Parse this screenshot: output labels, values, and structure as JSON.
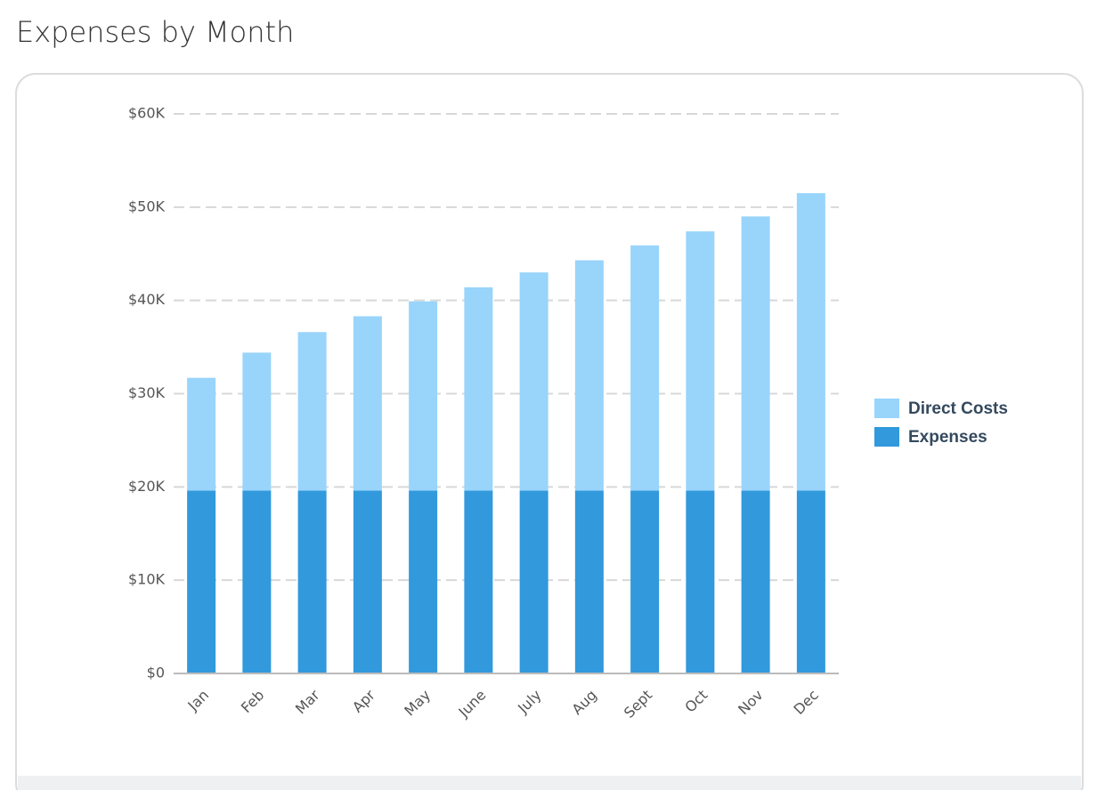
{
  "chart_data": {
    "type": "stacked_bar",
    "title": "Expenses by Month",
    "categories": [
      "Jan",
      "Feb",
      "Mar",
      "Apr",
      "May",
      "June",
      "July",
      "Aug",
      "Sept",
      "Oct",
      "Nov",
      "Dec"
    ],
    "series": [
      {
        "name": "Direct Costs",
        "color": "#99d4fb",
        "values": [
          12100,
          14800,
          17000,
          18700,
          20300,
          21800,
          23400,
          24700,
          26300,
          27800,
          29400,
          31900
        ]
      },
      {
        "name": "Expenses",
        "color": "#3199dc",
        "values": [
          19600,
          19600,
          19600,
          19600,
          19600,
          19600,
          19600,
          19600,
          19600,
          19600,
          19600,
          19600
        ]
      }
    ],
    "ylim": [
      0,
      60000
    ],
    "yticks": [
      {
        "value": 0,
        "label": "$0"
      },
      {
        "value": 10000,
        "label": "$10K"
      },
      {
        "value": 20000,
        "label": "$20K"
      },
      {
        "value": 30000,
        "label": "$30K"
      },
      {
        "value": 40000,
        "label": "$40K"
      },
      {
        "value": 50000,
        "label": "$50K"
      },
      {
        "value": 60000,
        "label": "$60K"
      }
    ],
    "grid": true,
    "legend": "right"
  }
}
